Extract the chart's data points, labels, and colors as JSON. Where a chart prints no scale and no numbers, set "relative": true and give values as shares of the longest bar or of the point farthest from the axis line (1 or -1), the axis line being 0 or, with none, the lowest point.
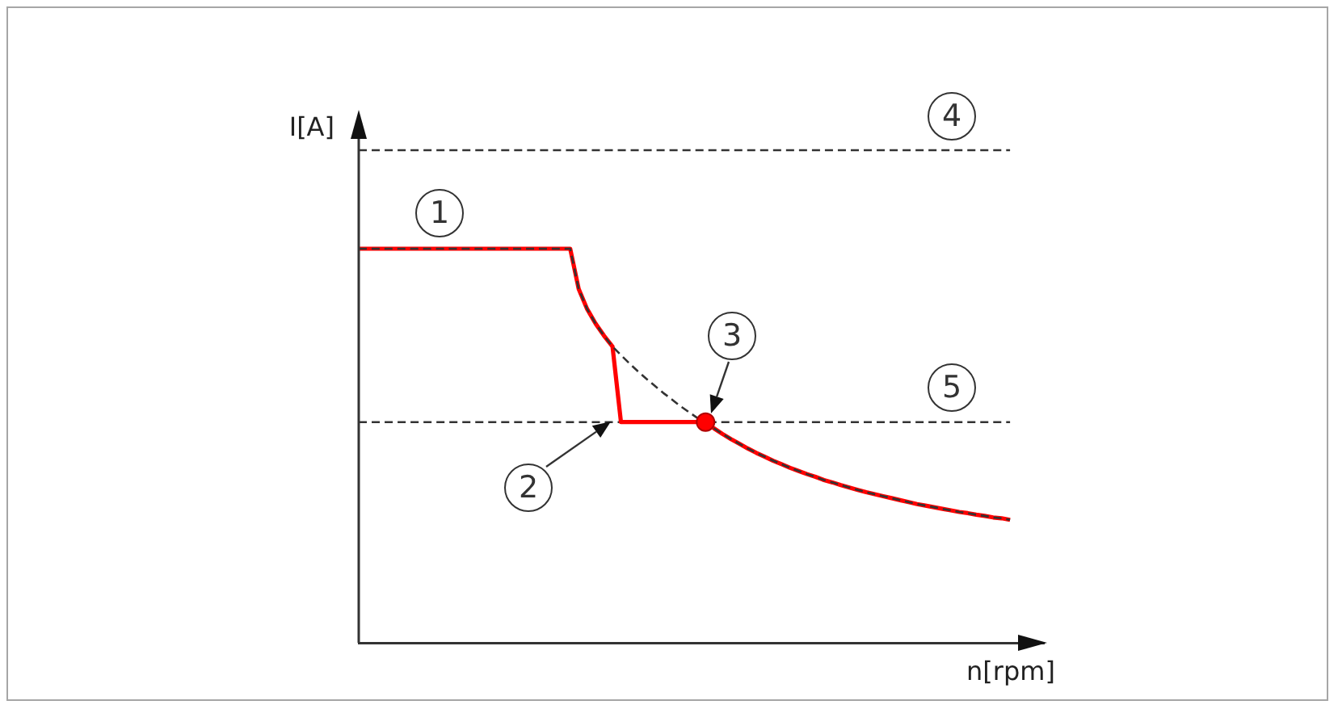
{
  "chart_data": {
    "type": "line",
    "relative": true,
    "xlabel": "n[rpm]",
    "ylabel": "I[A]",
    "categories": [
      null,
      null,
      null,
      null,
      null,
      null,
      null,
      null,
      null,
      null,
      null,
      null,
      null,
      null,
      null,
      null,
      null,
      null,
      null,
      null,
      null,
      null,
      null,
      null,
      null,
      null,
      null,
      null,
      null,
      null,
      null,
      null,
      null,
      null,
      null,
      null,
      null,
      null,
      null,
      null,
      null,
      null,
      null,
      null,
      null,
      null,
      null,
      null,
      null,
      null,
      null,
      null,
      null,
      null,
      null,
      null,
      null,
      null,
      null,
      null,
      null,
      null,
      null,
      null,
      null,
      null,
      null,
      null,
      null,
      null,
      null,
      null,
      null,
      null,
      null,
      null,
      null,
      null,
      null,
      null,
      null,
      null
    ],
    "series": [
      {
        "color": "#ff0000",
        "values": [
          1,
          1,
          1,
          1,
          1,
          1,
          1,
          1,
          1,
          1,
          1,
          1,
          1,
          1,
          1,
          1,
          1,
          1,
          1,
          1,
          1,
          1,
          1,
          1,
          1,
          1,
          0.898,
          0.847,
          0.81,
          0.779,
          0.752,
          0.56,
          0.56,
          0.56,
          0.56,
          0.56,
          0.56,
          0.56,
          0.56,
          0.56,
          0.56,
          0.56,
          0.544,
          0.53,
          0.517,
          0.505,
          0.493,
          0.482,
          0.472,
          0.462,
          0.453,
          0.444,
          0.436,
          0.428,
          0.421,
          0.413,
          0.407,
          0.4,
          0.394,
          0.388,
          0.382,
          0.377,
          0.372,
          0.367,
          0.362,
          0.357,
          0.352,
          0.348,
          0.344,
          0.34,
          0.336,
          0.332,
          0.329,
          0.325,
          0.322,
          0.318,
          0.316,
          0.312,
          null,
          null,
          null,
          null
        ]
      },
      {
        "color": "#333333",
        "line_style": "dashed",
        "values": [
          1,
          1,
          1,
          1,
          1,
          1,
          1,
          1,
          1,
          1,
          1,
          1,
          1,
          1,
          1,
          1,
          1,
          1,
          1,
          1,
          1,
          1,
          1,
          1,
          1,
          1,
          0.898,
          0.847,
          0.81,
          0.779,
          0.752,
          0.73,
          0.709,
          0.689,
          0.67,
          0.652,
          0.634,
          0.618,
          0.601,
          0.586,
          0.571,
          0.56,
          0.544,
          0.53,
          0.517,
          0.505,
          0.493,
          0.482,
          0.472,
          0.462,
          0.453,
          0.444,
          0.436,
          0.428,
          0.421,
          0.413,
          0.407,
          0.4,
          0.394,
          0.388,
          0.382,
          0.377,
          0.372,
          0.367,
          0.362,
          0.357,
          0.352,
          0.348,
          0.344,
          0.34,
          0.336,
          0.332,
          0.329,
          0.325,
          0.322,
          0.318,
          0.316,
          0.312,
          null,
          null,
          null,
          null
        ]
      },
      {
        "color": "#ff0000",
        "marker": "circle",
        "values": [
          null,
          null,
          null,
          null,
          null,
          null,
          null,
          null,
          null,
          null,
          null,
          null,
          null,
          null,
          null,
          null,
          null,
          null,
          null,
          null,
          null,
          null,
          null,
          null,
          null,
          null,
          null,
          null,
          null,
          null,
          null,
          null,
          null,
          null,
          null,
          null,
          null,
          null,
          null,
          null,
          null,
          0.56,
          null,
          null,
          null,
          null,
          null,
          null,
          null,
          null,
          null,
          null,
          null,
          null,
          null,
          null,
          null,
          null,
          null,
          null,
          null,
          null,
          null,
          null,
          null,
          null,
          null,
          null,
          null,
          null,
          null,
          null,
          null,
          null,
          null,
          null,
          null,
          null,
          null,
          null,
          null,
          null
        ]
      }
    ],
    "ref_lines": [
      {
        "axis": "y",
        "value": 1.25,
        "color": "#333333",
        "line_style": "dashed"
      },
      {
        "axis": "y",
        "value": 0.56,
        "color": "#333333",
        "line_style": "dashed"
      }
    ],
    "annotations": [
      "1",
      "2",
      "3",
      "4",
      "5"
    ]
  }
}
